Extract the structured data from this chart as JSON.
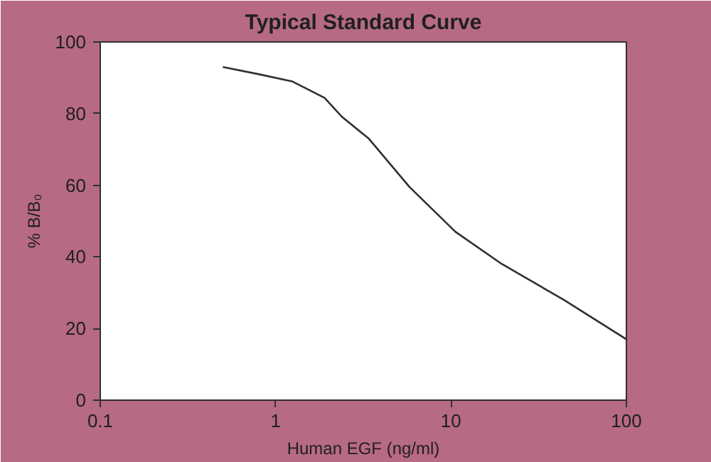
{
  "chart_data": {
    "type": "line",
    "title": "Typical Standard Curve",
    "xlabel": "Human EGF (ng/ml)",
    "ylabel": "% B/B₀",
    "log": "x",
    "x": [
      0.5,
      0.8,
      1.24,
      1.9,
      2.4,
      3.4,
      5.8,
      10.6,
      19.5,
      44,
      100
    ],
    "series": [
      {
        "color": "#303030",
        "values": [
          93,
          91,
          89,
          84.4,
          79,
          73,
          59.5,
          47,
          38,
          28,
          17
        ]
      }
    ],
    "xlim": [
      0.1,
      100
    ],
    "xticks": [
      0.1,
      1,
      10,
      100
    ],
    "ylim": [
      0,
      100
    ],
    "yticks": [
      0,
      20,
      40,
      60,
      80,
      100
    ],
    "grid": false,
    "marker": "none",
    "line_style": "solid"
  }
}
